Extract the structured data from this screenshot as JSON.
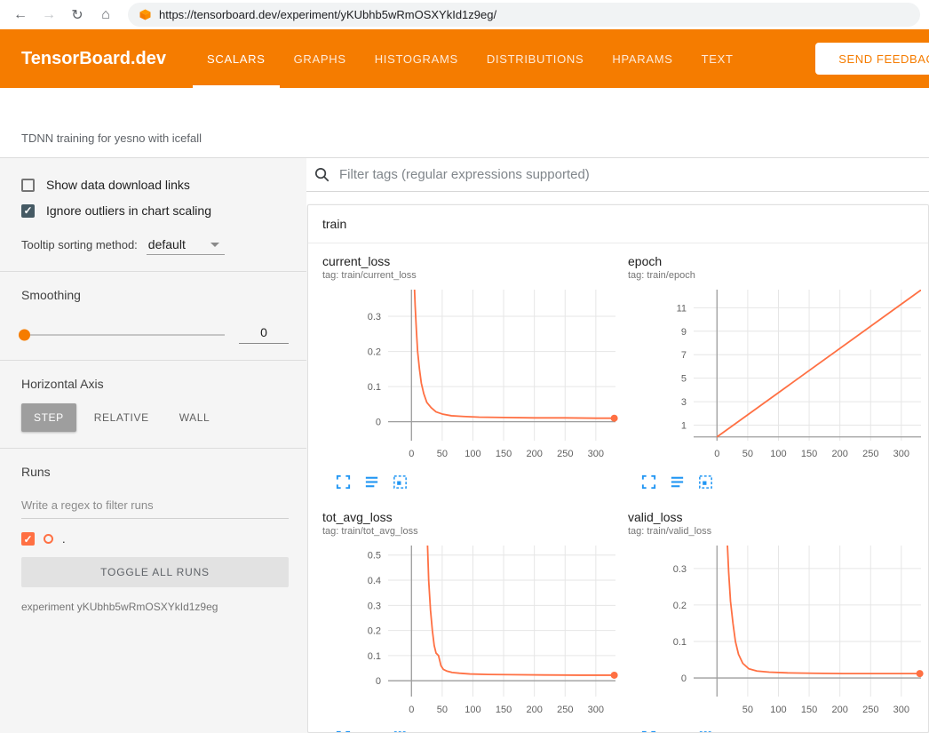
{
  "colors": {
    "header_bg": "#f57c00",
    "run_color": "#ff7043",
    "icon_blue": "#2196f3"
  },
  "browser": {
    "url": "https://tensorboard.dev/experiment/yKUbhb5wRmOSXYkId1z9eg/"
  },
  "header": {
    "brand": "TensorBoard.dev",
    "tabs": [
      {
        "label": "SCALARS",
        "active": true
      },
      {
        "label": "GRAPHS",
        "active": false
      },
      {
        "label": "HISTOGRAMS",
        "active": false
      },
      {
        "label": "DISTRIBUTIONS",
        "active": false
      },
      {
        "label": "HPARAMS",
        "active": false
      },
      {
        "label": "TEXT",
        "active": false
      }
    ],
    "feedback_button": "SEND FEEDBACK"
  },
  "subheader": {
    "experiment_title": "TDNN training for yesno with icefall"
  },
  "sidebar": {
    "show_download": {
      "label": "Show data download links",
      "checked": false
    },
    "ignore_outliers": {
      "label": "Ignore outliers in chart scaling",
      "checked": true
    },
    "tooltip_sorting": {
      "label": "Tooltip sorting method:",
      "value": "default"
    },
    "smoothing": {
      "label": "Smoothing",
      "value": "0"
    },
    "horizontal_axis": {
      "label": "Horizontal Axis",
      "options": [
        "STEP",
        "RELATIVE",
        "WALL"
      ],
      "selected": "STEP"
    },
    "runs": {
      "label": "Runs",
      "filter_placeholder": "Write a regex to filter runs",
      "items": [
        {
          "name": ".",
          "checked": true
        }
      ],
      "toggle_all_label": "TOGGLE ALL RUNS",
      "experiment_caption": "experiment yKUbhb5wRmOSXYkId1z9eg"
    }
  },
  "main": {
    "filter_placeholder": "Filter tags (regular expressions supported)",
    "group_label": "train"
  },
  "chart_data": [
    {
      "type": "line",
      "title": "current_loss",
      "tag": "tag: train/current_loss",
      "xlim": [
        -38,
        332
      ],
      "ylim": [
        -0.054,
        0.376
      ],
      "xticks": [
        0,
        50,
        100,
        150,
        200,
        250,
        300
      ],
      "yticks": [
        0,
        0.1,
        0.2,
        0.3
      ],
      "grid": true,
      "legend": "none",
      "series": [
        {
          "name": ".",
          "color": "#ff7043",
          "end_dot": true,
          "x": [
            2,
            4,
            6,
            8,
            10,
            13,
            16,
            20,
            25,
            32,
            40,
            50,
            65,
            85,
            110,
            150,
            200,
            250,
            300,
            330
          ],
          "y": [
            0.55,
            0.42,
            0.33,
            0.26,
            0.2,
            0.15,
            0.11,
            0.08,
            0.055,
            0.04,
            0.028,
            0.022,
            0.017,
            0.015,
            0.013,
            0.012,
            0.011,
            0.011,
            0.01,
            0.01
          ]
        }
      ]
    },
    {
      "type": "line",
      "title": "epoch",
      "tag": "tag: train/epoch",
      "xlim": [
        -38,
        332
      ],
      "ylim": [
        -0.32,
        12.54
      ],
      "xticks": [
        0,
        50,
        100,
        150,
        200,
        250,
        300
      ],
      "yticks": [
        1,
        3,
        5,
        7,
        9,
        11
      ],
      "grid": true,
      "legend": "none",
      "series": [
        {
          "name": ".",
          "color": "#ff7043",
          "end_dot": false,
          "x": [
            0,
            345
          ],
          "y": [
            0,
            13
          ]
        }
      ]
    },
    {
      "type": "line",
      "title": "tot_avg_loss",
      "tag": "tag: train/tot_avg_loss",
      "xlim": [
        -38,
        332
      ],
      "ylim": [
        -0.063,
        0.538
      ],
      "xticks": [
        0,
        50,
        100,
        150,
        200,
        250,
        300
      ],
      "yticks": [
        0,
        0.1,
        0.2,
        0.3,
        0.4,
        0.5
      ],
      "grid": true,
      "legend": "none",
      "series": [
        {
          "name": ".",
          "color": "#ff7043",
          "end_dot": true,
          "x": [
            24,
            26,
            28,
            31,
            34,
            37,
            40,
            44,
            48,
            52,
            58,
            66,
            78,
            95,
            125,
            165,
            215,
            275,
            330
          ],
          "y": [
            0.8,
            0.55,
            0.4,
            0.28,
            0.2,
            0.14,
            0.11,
            0.1,
            0.06,
            0.045,
            0.038,
            0.033,
            0.03,
            0.027,
            0.025,
            0.024,
            0.023,
            0.022,
            0.022
          ]
        }
      ]
    },
    {
      "type": "line",
      "title": "valid_loss",
      "tag": "tag: train/valid_loss",
      "xlim": [
        -38,
        332
      ],
      "ylim": [
        -0.051,
        0.363
      ],
      "xticks": [
        50,
        100,
        150,
        200,
        250,
        300
      ],
      "yticks": [
        0,
        0.1,
        0.2,
        0.3
      ],
      "grid": true,
      "legend": "none",
      "series": [
        {
          "name": ".",
          "color": "#ff7043",
          "end_dot": true,
          "x": [
            14,
            16,
            19,
            22,
            26,
            30,
            35,
            42,
            52,
            65,
            85,
            115,
            155,
            205,
            260,
            330
          ],
          "y": [
            0.55,
            0.4,
            0.29,
            0.21,
            0.15,
            0.1,
            0.065,
            0.04,
            0.025,
            0.019,
            0.016,
            0.014,
            0.013,
            0.012,
            0.012,
            0.012
          ]
        }
      ]
    }
  ]
}
